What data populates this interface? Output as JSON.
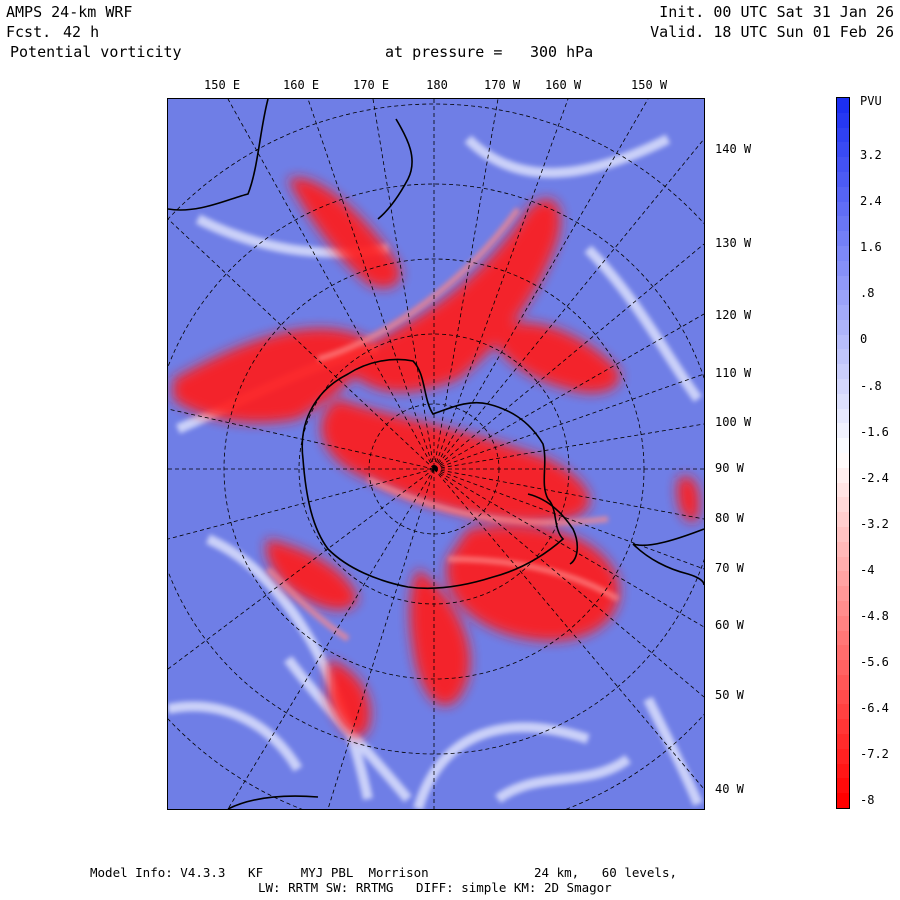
{
  "header": {
    "model": "AMPS 24-km WRF",
    "forecast_label": "Fcst.",
    "forecast_value": "42 h",
    "field": "Potential vorticity",
    "pressure_label": "at pressure =",
    "pressure_value": "300 hPa",
    "init": "Init. 00 UTC Sat 31 Jan 26",
    "valid": "Valid. 18 UTC Sun 01 Feb 26"
  },
  "map": {
    "top_longitudes": [
      "150 E",
      "160 E",
      "170 E",
      "180",
      "170 W",
      "160 W",
      "150 W"
    ],
    "right_longitudes": [
      "140 W",
      "130 W",
      "120 W",
      "110 W",
      "100 W",
      "90 W",
      "80 W",
      "70 W",
      "60 W",
      "50 W",
      "40 W"
    ]
  },
  "colorbar": {
    "units": "PVU",
    "tick_labels": [
      "3.2",
      "2.4",
      "1.6",
      ".8",
      "0",
      "-.8",
      "-1.6",
      "-2.4",
      "-3.2",
      "-4",
      "-4.8",
      "-5.6",
      "-6.4",
      "-7.2",
      "-8"
    ],
    "colors": {
      "max_blue": "#1c2ff2",
      "white": "#ffffff",
      "max_red": "#ff0000",
      "background_blue": "#6f7ee6"
    }
  },
  "footer": {
    "line1": "Model Info: V4.3.3   KF     MYJ PBL  Morrison              24 km,   60 levels,",
    "line2": "LW: RRTM SW: RRTMG   DIFF: simple KM: 2D Smagor"
  }
}
